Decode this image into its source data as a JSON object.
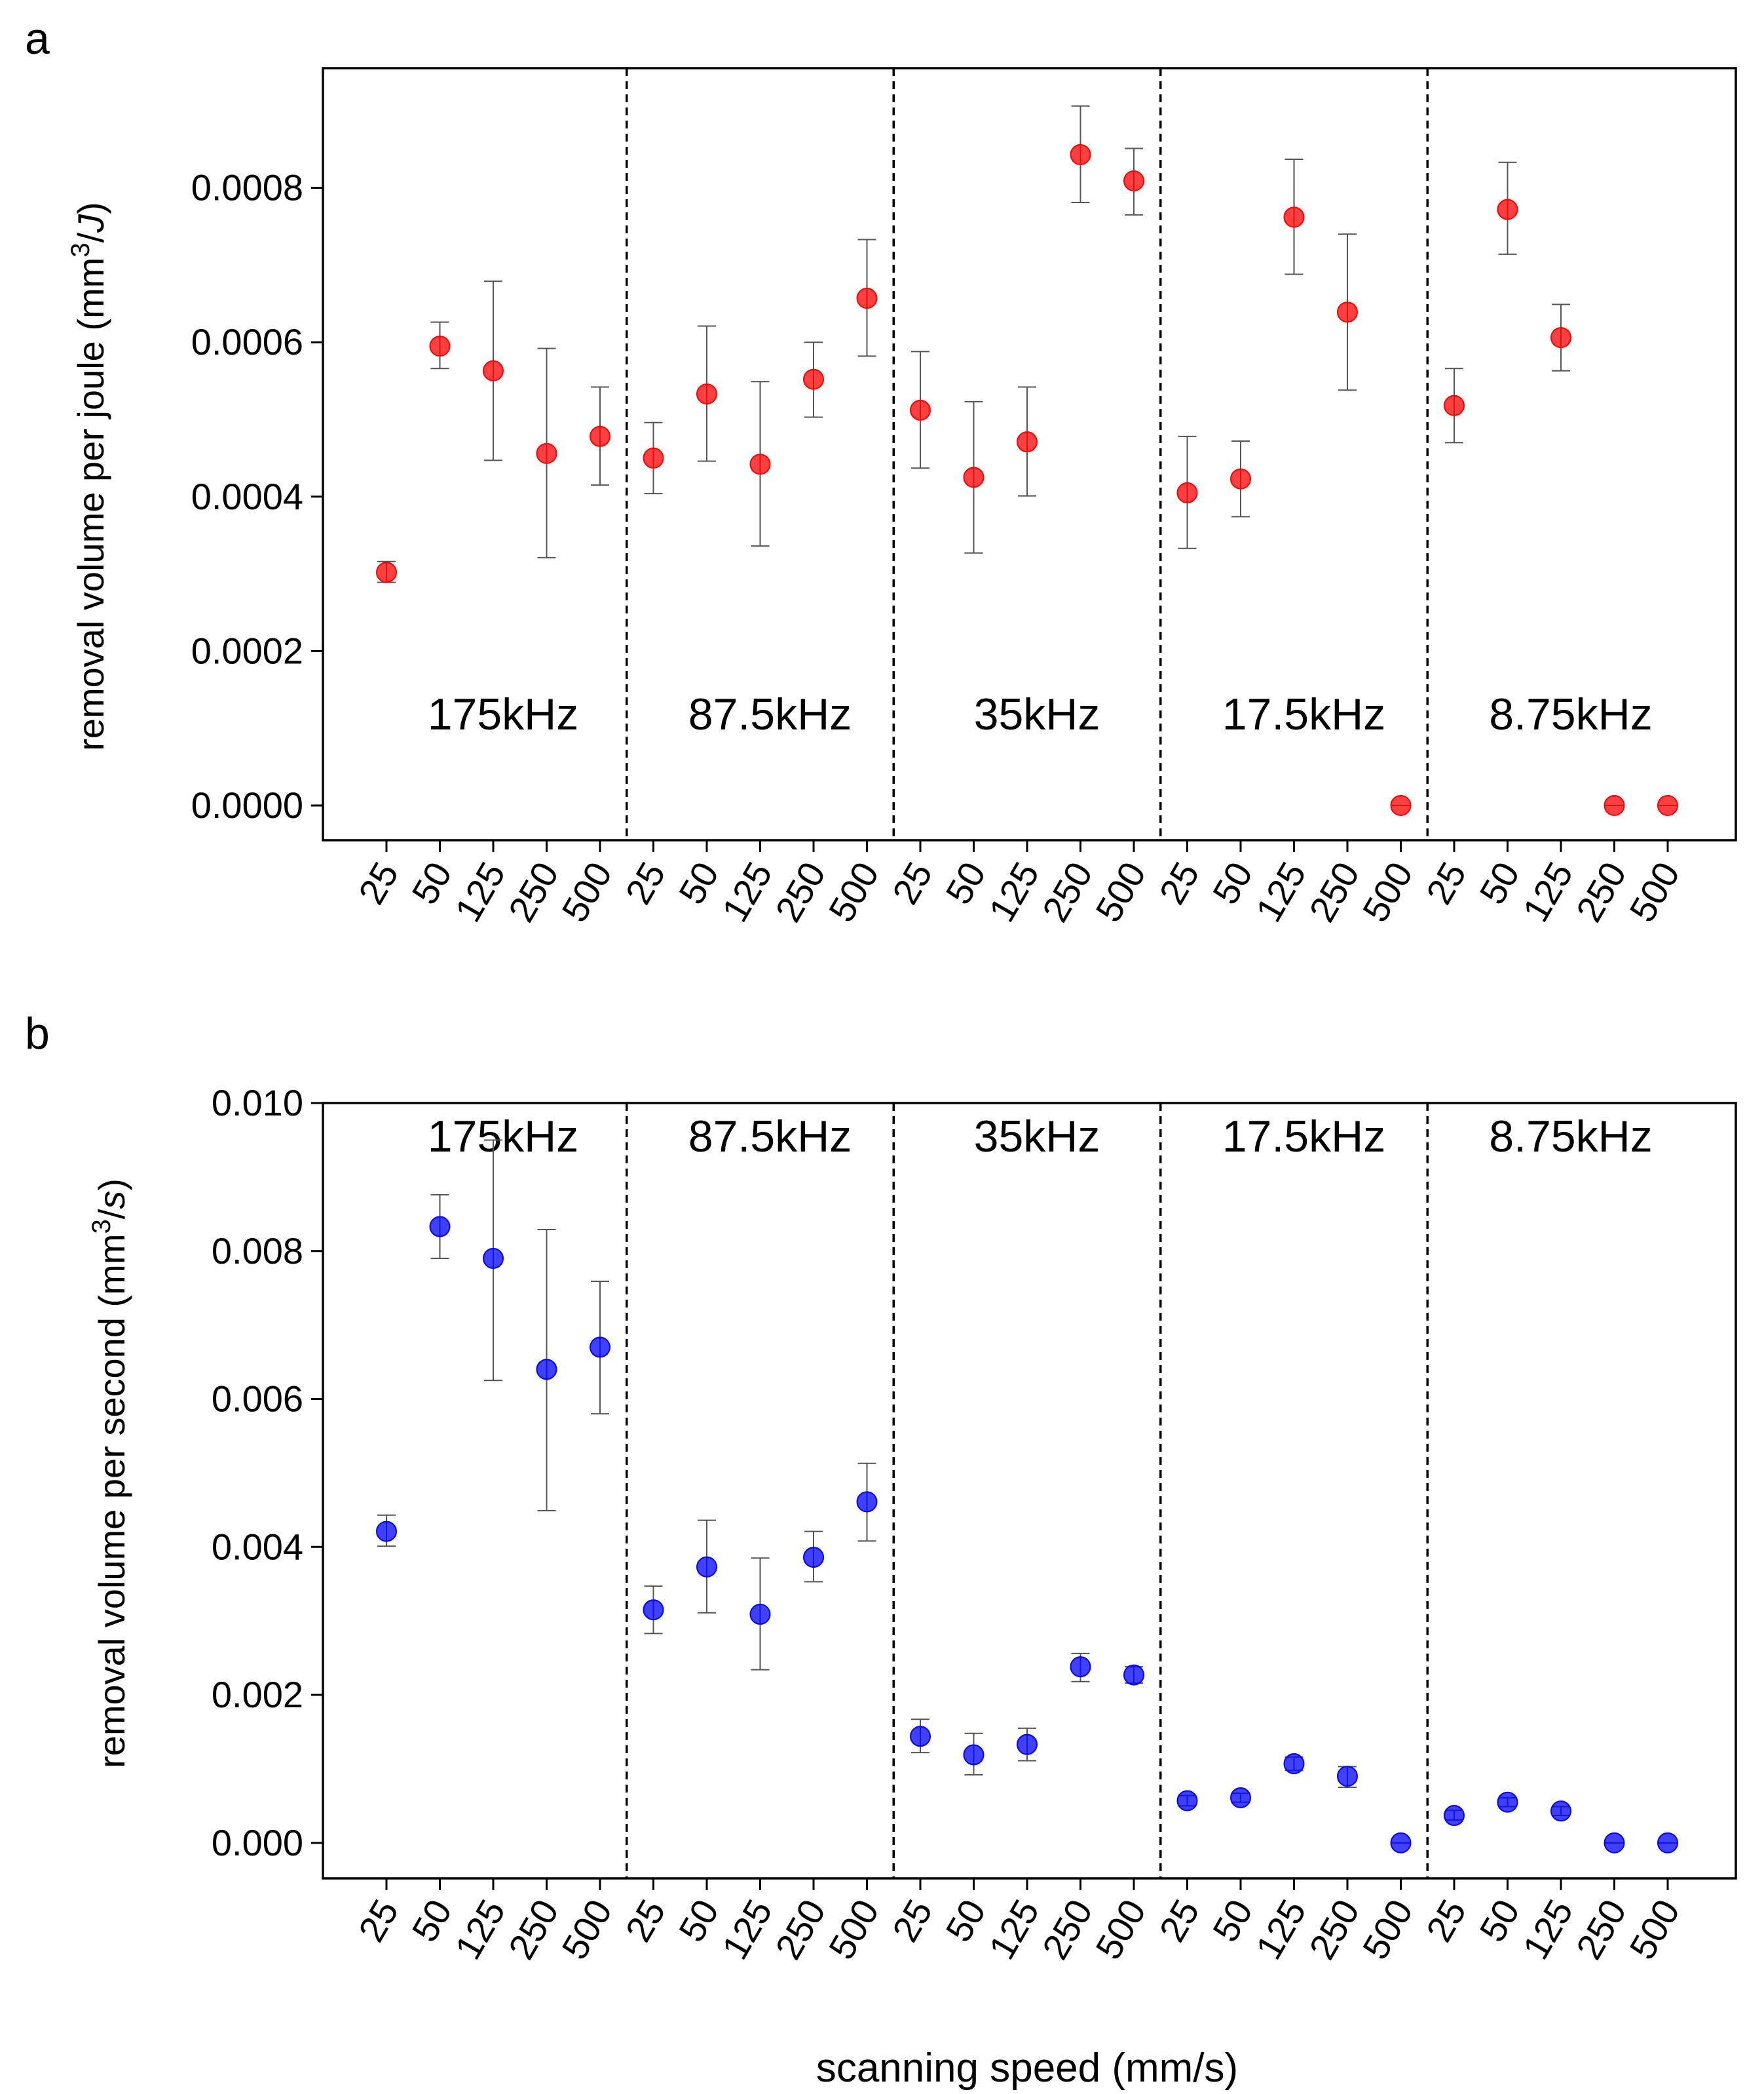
{
  "chart_data": [
    {
      "type": "scatter",
      "panel_label": "a",
      "ylabel": "removal volume per joule (mm",
      "ylabel_sup": "3",
      "ylabel_tail": "/",
      "ylabel_unit_italic": "J",
      "ylabel_close": ")",
      "ylim": [
        -4.5e-05,
        0.000955
      ],
      "yticks": [
        0,
        0.0002,
        0.0004,
        0.0006,
        0.0008
      ],
      "ytick_labels": [
        "0.0000",
        "0.0002",
        "0.0004",
        "0.0006",
        "0.0008"
      ],
      "x_ticks": [
        "25",
        "50",
        "125",
        "250",
        "500",
        "25",
        "50",
        "125",
        "250",
        "500",
        "25",
        "50",
        "125",
        "250",
        "500",
        "25",
        "50",
        "125",
        "250",
        "500",
        "25",
        "50",
        "125",
        "250",
        "500"
      ],
      "groups": [
        "175kHz",
        "87.5kHz",
        "35kHz",
        "17.5kHz",
        "8.75kHz"
      ],
      "group_label_position": "bottom",
      "marker_color": "#ff0000",
      "values": [
        0.000302,
        0.000595,
        0.000563,
        0.000456,
        0.000478,
        0.00045,
        0.000533,
        0.000442,
        0.000552,
        0.000657,
        0.000512,
        0.000425,
        0.000471,
        0.000843,
        0.000809,
        0.000405,
        0.000423,
        0.000762,
        0.000639,
        0.0,
        0.000518,
        0.000772,
        0.000606,
        0.0,
        0.0
      ],
      "err_low": [
        0.000289,
        0.000566,
        0.000447,
        0.000321,
        0.000415,
        0.000404,
        0.000446,
        0.000336,
        0.000503,
        0.000582,
        0.000437,
        0.000327,
        0.000401,
        0.000781,
        0.000765,
        0.000333,
        0.000374,
        0.000688,
        0.000538,
        0.0,
        0.00047,
        0.000714,
        0.000563,
        0.0,
        0.0
      ],
      "err_high": [
        0.000316,
        0.000626,
        0.000679,
        0.000592,
        0.000542,
        0.000496,
        0.000621,
        0.000549,
        0.0006,
        0.000733,
        0.000588,
        0.000523,
        0.000542,
        0.000906,
        0.000851,
        0.000478,
        0.000472,
        0.000837,
        0.00074,
        0.0,
        0.000566,
        0.000833,
        0.000649,
        0.0,
        0.0
      ]
    },
    {
      "type": "scatter",
      "panel_label": "b",
      "ylabel": "removal volume per second (mm",
      "ylabel_sup": "3",
      "ylabel_tail": "/",
      "ylabel_unit_italic": "s",
      "ylabel_close": ")",
      "xlabel": "scanning speed (mm/s)",
      "ylim": [
        -0.00048,
        0.01
      ],
      "yticks": [
        0,
        0.002,
        0.004,
        0.006,
        0.008,
        0.01
      ],
      "ytick_labels": [
        "0.000",
        "0.002",
        "0.004",
        "0.006",
        "0.008",
        "0.010"
      ],
      "x_ticks": [
        "25",
        "50",
        "125",
        "250",
        "500",
        "25",
        "50",
        "125",
        "250",
        "500",
        "25",
        "50",
        "125",
        "250",
        "500",
        "25",
        "50",
        "125",
        "250",
        "500",
        "25",
        "50",
        "125",
        "250",
        "500"
      ],
      "groups": [
        "175kHz",
        "87.5kHz",
        "35kHz",
        "17.5kHz",
        "8.75kHz"
      ],
      "group_label_position": "top",
      "marker_color": "#0000ff",
      "values": [
        0.00421,
        0.00833,
        0.0079,
        0.0064,
        0.0067,
        0.00315,
        0.00373,
        0.00309,
        0.00386,
        0.00461,
        0.00144,
        0.00119,
        0.00133,
        0.00238,
        0.00227,
        0.00057,
        0.00061,
        0.00107,
        0.0009,
        0.0,
        0.00037,
        0.00055,
        0.00043,
        0.0,
        0.0
      ],
      "err_low": [
        0.00401,
        0.0079,
        0.00625,
        0.00449,
        0.0058,
        0.00283,
        0.00311,
        0.00234,
        0.00353,
        0.00408,
        0.00122,
        0.00092,
        0.00111,
        0.00218,
        0.00216,
        0.0005,
        0.00055,
        0.00098,
        0.00075,
        0.0,
        0.00031,
        0.00049,
        0.00037,
        0.0,
        0.0
      ],
      "err_high": [
        0.00443,
        0.00876,
        0.0095,
        0.00829,
        0.00759,
        0.00347,
        0.00436,
        0.00385,
        0.00421,
        0.00513,
        0.00167,
        0.00148,
        0.00155,
        0.00256,
        0.00238,
        0.00064,
        0.00067,
        0.00116,
        0.00103,
        0.0,
        0.00044,
        0.00061,
        0.00049,
        0.0,
        0.0
      ]
    }
  ]
}
